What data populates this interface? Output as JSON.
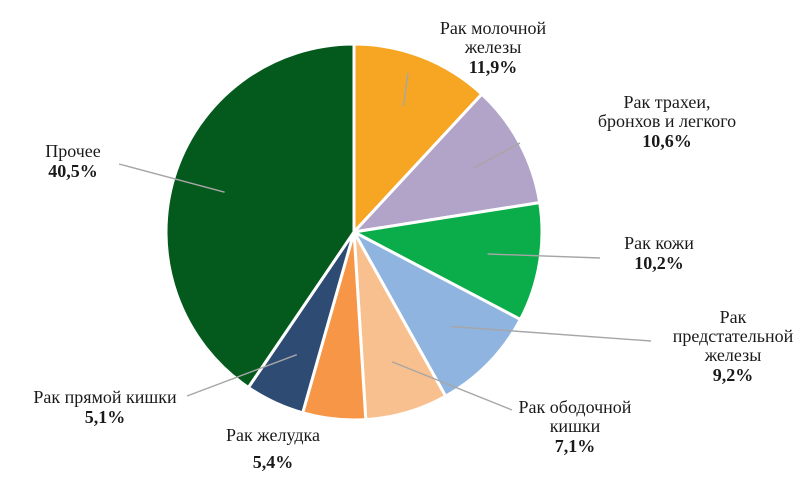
{
  "chart_data": {
    "type": "pie",
    "title": "",
    "slices": [
      {
        "label": "Рак молочной железы",
        "value": 11.9,
        "value_label": "11,9%",
        "color": "#f6a623"
      },
      {
        "label": "Рак трахеи, бронхов и легкого",
        "value": 10.6,
        "value_label": "10,6%",
        "color": "#b2a3c8"
      },
      {
        "label": "Рак кожи",
        "value": 10.2,
        "value_label": "10,2%",
        "color": "#0aad4a"
      },
      {
        "label": "Рак предстательной железы",
        "value": 9.2,
        "value_label": "9,2%",
        "color": "#90b4e0"
      },
      {
        "label": "Рак ободочной кишки",
        "value": 7.1,
        "value_label": "7,1%",
        "color": "#f9c08f"
      },
      {
        "label": "Рак желудка",
        "value": 5.4,
        "value_label": "5,4%",
        "color": "#f79646"
      },
      {
        "label": "Рак прямой кишки",
        "value": 5.1,
        "value_label": "5,1%",
        "color": "#2e4b73"
      },
      {
        "label": "Прочее",
        "value": 40.5,
        "value_label": "40,5%",
        "color": "#045a1c"
      }
    ]
  }
}
